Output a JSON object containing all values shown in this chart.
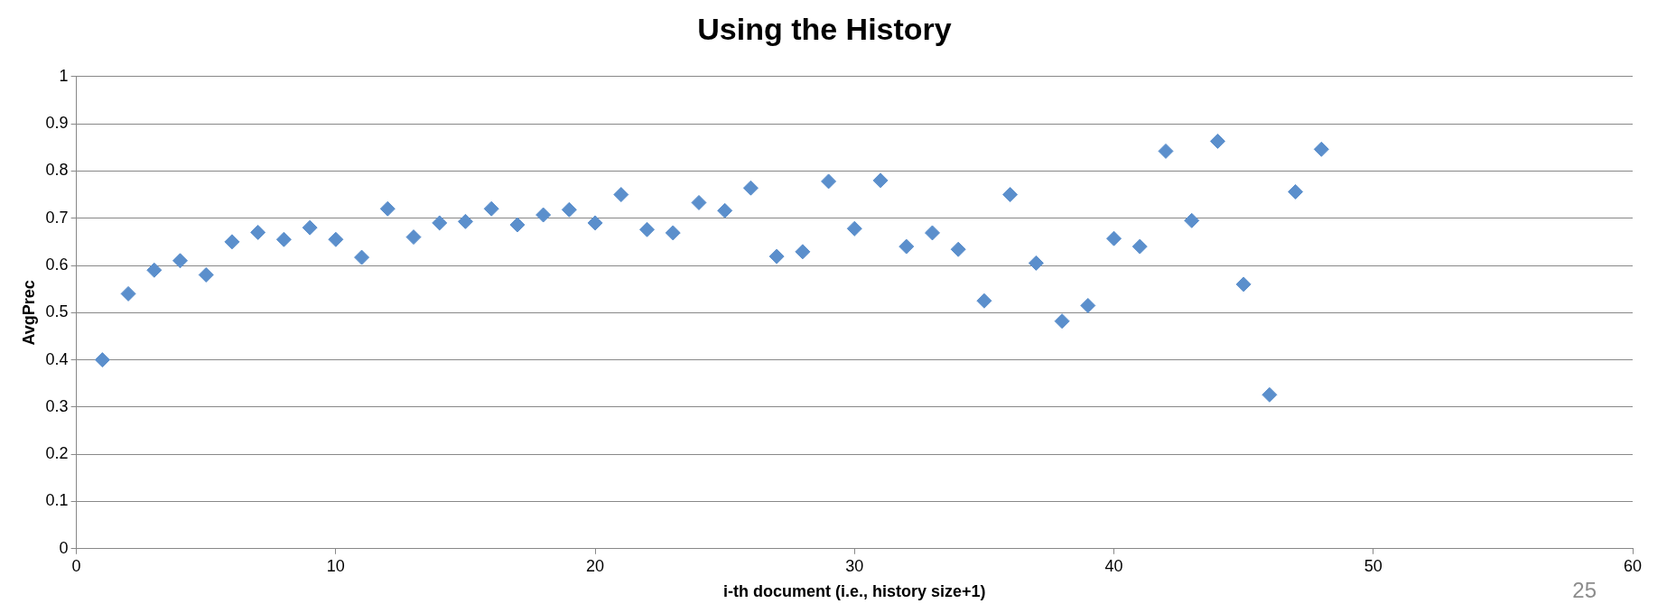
{
  "chart_data": {
    "type": "scatter",
    "title": "Using the History",
    "xlabel": "i-th document (i.e., history size+1)",
    "ylabel": "AvgPrec",
    "x": [
      1,
      2,
      3,
      4,
      5,
      6,
      7,
      8,
      9,
      10,
      11,
      12,
      13,
      14,
      15,
      16,
      17,
      18,
      19,
      20,
      21,
      22,
      23,
      24,
      25,
      26,
      27,
      28,
      29,
      30,
      31,
      32,
      33,
      34,
      35,
      36,
      37,
      38,
      39,
      40,
      41,
      42,
      43,
      44,
      45,
      46,
      47,
      48
    ],
    "series": [
      {
        "color": "#5b8fcc",
        "values": [
          0.4,
          0.54,
          0.59,
          0.61,
          0.58,
          0.65,
          0.67,
          0.655,
          0.68,
          0.655,
          0.617,
          0.72,
          0.66,
          0.69,
          0.693,
          0.72,
          0.686,
          0.707,
          0.718,
          0.69,
          0.75,
          0.676,
          0.669,
          0.733,
          0.716,
          0.764,
          0.619,
          0.629,
          0.778,
          0.678,
          0.78,
          0.64,
          0.669,
          0.634,
          0.525,
          0.75,
          0.605,
          0.482,
          0.515,
          0.657,
          0.64,
          0.842,
          0.695,
          0.863,
          0.56,
          0.326,
          0.756,
          0.846
        ]
      }
    ],
    "xlim": [
      0,
      60
    ],
    "xticks": [
      0,
      10,
      20,
      30,
      40,
      50,
      60
    ],
    "ylim": [
      0,
      1
    ],
    "yticks": [
      0,
      0.1,
      0.2,
      0.3,
      0.4,
      0.5,
      0.6,
      0.7,
      0.8,
      0.9,
      1
    ],
    "grid": "y",
    "marker": "diamond",
    "legend": false,
    "annotations": [
      "25"
    ]
  }
}
